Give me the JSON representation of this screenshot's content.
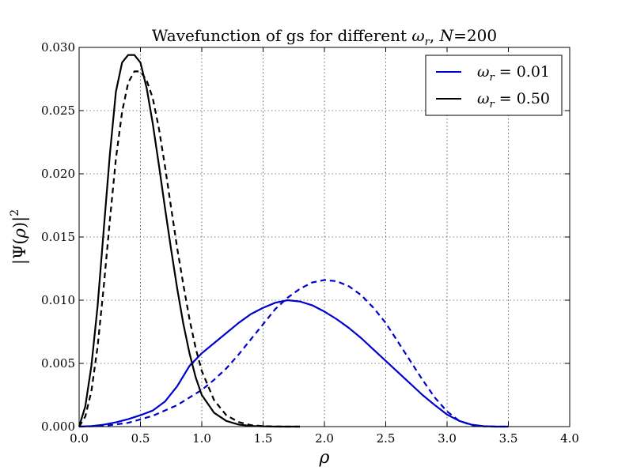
{
  "chart_data": {
    "type": "line",
    "title": {
      "prefix": "Wavefunction of gs for different ",
      "var": "ω",
      "var_sub": "r",
      "sep": ", ",
      "n_var": "N",
      "n_eq": "=200"
    },
    "xlabel": "ρ",
    "ylabel": {
      "prefix": "|Ψ(",
      "var": "ρ",
      "suffix": ")|",
      "power": "2"
    },
    "xlim": [
      0.0,
      4.0
    ],
    "ylim": [
      0.0,
      0.03
    ],
    "x_ticks": [
      "0.0",
      "0.5",
      "1.0",
      "1.5",
      "2.0",
      "2.5",
      "3.0",
      "3.5",
      "4.0"
    ],
    "y_ticks": [
      "0.000",
      "0.005",
      "0.010",
      "0.015",
      "0.020",
      "0.025",
      "0.030"
    ],
    "grid": true,
    "legend_position": "top-right",
    "legend": [
      {
        "var": "ω",
        "sub": "r",
        "value": " = 0.01",
        "color": "#0000cc"
      },
      {
        "var": "ω",
        "sub": "r",
        "value": " = 0.50",
        "color": "#000000"
      }
    ],
    "series": [
      {
        "color": "#0000cc",
        "dash": "solid",
        "x": [
          0.0,
          0.1,
          0.2,
          0.3,
          0.4,
          0.5,
          0.6,
          0.7,
          0.8,
          0.9,
          1.0,
          1.1,
          1.2,
          1.3,
          1.4,
          1.5,
          1.6,
          1.7,
          1.8,
          1.9,
          2.0,
          2.1,
          2.2,
          2.3,
          2.4,
          2.5,
          2.6,
          2.7,
          2.8,
          2.9,
          3.0,
          3.1,
          3.2,
          3.3,
          3.4,
          3.5
        ],
        "y": [
          0.0,
          4e-05,
          0.00015,
          0.00034,
          0.00059,
          0.0009,
          0.00127,
          0.00198,
          0.0032,
          0.0048,
          0.0058,
          0.0066,
          0.0074,
          0.0082,
          0.0089,
          0.0094,
          0.0098,
          0.01,
          0.0099,
          0.0096,
          0.0091,
          0.0085,
          0.0078,
          0.007,
          0.0061,
          0.0052,
          0.0043,
          0.0034,
          0.0025,
          0.0017,
          0.00095,
          0.00045,
          0.00015,
          3e-05,
          0.0,
          0.0
        ]
      },
      {
        "color": "#0000cc",
        "dash": "dashed",
        "x": [
          0.0,
          0.2,
          0.4,
          0.6,
          0.8,
          1.0,
          1.1,
          1.2,
          1.3,
          1.4,
          1.5,
          1.6,
          1.7,
          1.8,
          1.9,
          2.0,
          2.1,
          2.2,
          2.3,
          2.4,
          2.5,
          2.6,
          2.7,
          2.8,
          2.9,
          3.0,
          3.1,
          3.2,
          3.3,
          3.4,
          3.5
        ],
        "y": [
          0.0,
          5e-05,
          0.0003,
          0.00085,
          0.0017,
          0.0029,
          0.0037,
          0.0046,
          0.0057,
          0.0069,
          0.0081,
          0.0093,
          0.0102,
          0.0109,
          0.0114,
          0.0116,
          0.0115,
          0.0111,
          0.0104,
          0.0094,
          0.0082,
          0.0067,
          0.0052,
          0.0037,
          0.0023,
          0.0012,
          0.00045,
          0.00012,
          2e-05,
          0.0,
          0.0
        ]
      },
      {
        "color": "#000000",
        "dash": "solid",
        "x": [
          0.0,
          0.05,
          0.1,
          0.15,
          0.2,
          0.25,
          0.3,
          0.35,
          0.4,
          0.45,
          0.5,
          0.55,
          0.6,
          0.65,
          0.7,
          0.75,
          0.8,
          0.85,
          0.9,
          0.95,
          1.0,
          1.1,
          1.2,
          1.3,
          1.4,
          1.5,
          1.6,
          1.7,
          1.8
        ],
        "y": [
          0.0,
          0.0016,
          0.0048,
          0.0095,
          0.0155,
          0.0215,
          0.0265,
          0.0288,
          0.0294,
          0.0294,
          0.0288,
          0.0268,
          0.024,
          0.0207,
          0.0173,
          0.014,
          0.0109,
          0.0081,
          0.0058,
          0.0039,
          0.0025,
          0.0011,
          0.00045,
          0.00016,
          5e-05,
          2e-05,
          0.0,
          0.0,
          0.0
        ]
      },
      {
        "color": "#000000",
        "dash": "dashed",
        "x": [
          0.0,
          0.05,
          0.1,
          0.15,
          0.2,
          0.25,
          0.3,
          0.35,
          0.4,
          0.45,
          0.5,
          0.55,
          0.6,
          0.65,
          0.7,
          0.75,
          0.8,
          0.85,
          0.9,
          0.95,
          1.0,
          1.1,
          1.2,
          1.3,
          1.4,
          1.5,
          1.6,
          1.7,
          1.8
        ],
        "y": [
          0.0,
          0.0008,
          0.0028,
          0.0063,
          0.011,
          0.0163,
          0.0212,
          0.0249,
          0.0272,
          0.0281,
          0.0281,
          0.0274,
          0.026,
          0.0236,
          0.0206,
          0.0173,
          0.0141,
          0.0112,
          0.0085,
          0.0062,
          0.0044,
          0.0021,
          0.0009,
          0.00036,
          0.00012,
          4e-05,
          1e-05,
          0.0,
          0.0
        ]
      }
    ]
  }
}
